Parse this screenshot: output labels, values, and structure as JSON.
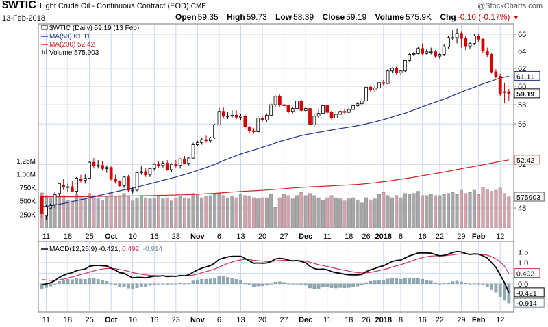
{
  "header": {
    "symbol": "$WTIC",
    "description": "Light Crude Oil - Continuous Contract (EOD)",
    "exchange": "CME",
    "logo": "@StockCharts.com",
    "date": "13-Feb-2018",
    "open_label": "Open",
    "open": "59.35",
    "high_label": "High",
    "high": "59.73",
    "low_label": "Low",
    "low": "58.39",
    "close_label": "Close",
    "close": "59.19",
    "volume_label": "Volume",
    "volume": "575.9K",
    "chg_label": "Chg",
    "chg": "-0.10 (-0.17%)"
  },
  "legend": {
    "price": "$WTIC (Daily) 59.19 (13 Feb)",
    "ma50": "MA(50) 61.11",
    "ma200": "MA(200) 52.42",
    "volume": "Volume 575,903"
  },
  "macd_label": {
    "name": "MACD(12,26,9)",
    "macd": "-0.421,",
    "signal": "0.492,",
    "hist": "-0.914"
  },
  "colors": {
    "up": "#ffffff",
    "down": "#dd0000",
    "ma50": "#1f2f8f",
    "ma200": "#cc2222",
    "grid": "#c9d7ee",
    "vol_up": "#a8a8a8",
    "vol_down": "#d6a2ad",
    "macd": "#000000",
    "signal": "#cc3355",
    "hist": "#8fa7b3"
  },
  "chart_data": [
    {
      "type": "candlestick",
      "title": "$WTIC Light Crude Oil - Continuous Contract (EOD)",
      "x": [
        "2017-09-08",
        "2017-09-11",
        "2017-09-12",
        "2017-09-13",
        "2017-09-14",
        "2017-09-15",
        "2017-09-18",
        "2017-09-19",
        "2017-09-20",
        "2017-09-21",
        "2017-09-22",
        "2017-09-25",
        "2017-09-26",
        "2017-09-27",
        "2017-09-28",
        "2017-09-29",
        "2017-10-02",
        "2017-10-03",
        "2017-10-04",
        "2017-10-05",
        "2017-10-06",
        "2017-10-09",
        "2017-10-10",
        "2017-10-11",
        "2017-10-12",
        "2017-10-13",
        "2017-10-16",
        "2017-10-17",
        "2017-10-18",
        "2017-10-19",
        "2017-10-20",
        "2017-10-23",
        "2017-10-24",
        "2017-10-25",
        "2017-10-26",
        "2017-10-27",
        "2017-10-30",
        "2017-10-31",
        "2017-11-01",
        "2017-11-02",
        "2017-11-03",
        "2017-11-06",
        "2017-11-07",
        "2017-11-08",
        "2017-11-09",
        "2017-11-10",
        "2017-11-13",
        "2017-11-14",
        "2017-11-15",
        "2017-11-16",
        "2017-11-17",
        "2017-11-20",
        "2017-11-21",
        "2017-11-22",
        "2017-11-24",
        "2017-11-27",
        "2017-11-28",
        "2017-11-29",
        "2017-11-30",
        "2017-12-01",
        "2017-12-04",
        "2017-12-05",
        "2017-12-06",
        "2017-12-07",
        "2017-12-08",
        "2017-12-11",
        "2017-12-12",
        "2017-12-13",
        "2017-12-14",
        "2017-12-15",
        "2017-12-18",
        "2017-12-19",
        "2017-12-20",
        "2017-12-21",
        "2017-12-22",
        "2017-12-26",
        "2017-12-27",
        "2017-12-28",
        "2017-12-29",
        "2018-01-02",
        "2018-01-03",
        "2018-01-04",
        "2018-01-05",
        "2018-01-08",
        "2018-01-09",
        "2018-01-10",
        "2018-01-11",
        "2018-01-12",
        "2018-01-16",
        "2018-01-17",
        "2018-01-18",
        "2018-01-19",
        "2018-01-22",
        "2018-01-23",
        "2018-01-24",
        "2018-01-25",
        "2018-01-26",
        "2018-01-29",
        "2018-01-30",
        "2018-01-31",
        "2018-02-01",
        "2018-02-02",
        "2018-02-05",
        "2018-02-06",
        "2018-02-07",
        "2018-02-08",
        "2018-02-09",
        "2018-02-12",
        "2018-02-13"
      ],
      "open": [
        49.0,
        47.3,
        48.0,
        48.3,
        49.3,
        50.0,
        49.9,
        49.9,
        49.5,
        50.6,
        50.5,
        50.7,
        52.2,
        51.9,
        51.9,
        51.6,
        51.7,
        50.6,
        50.4,
        50.0,
        50.8,
        49.6,
        49.6,
        51.2,
        51.3,
        51.0,
        51.6,
        52.0,
        51.9,
        52.1,
        51.5,
        52.0,
        51.9,
        52.5,
        52.1,
        52.6,
        53.9,
        54.1,
        54.4,
        54.3,
        54.6,
        55.9,
        57.3,
        56.8,
        56.8,
        56.9,
        56.7,
        56.8,
        55.7,
        55.3,
        55.2,
        56.6,
        56.4,
        56.9,
        58.0,
        58.9,
        58.0,
        57.9,
        57.3,
        57.6,
        58.4,
        57.4,
        57.6,
        55.9,
        56.8,
        57.1,
        57.9,
        57.2,
        56.6,
        57.0,
        57.3,
        57.2,
        57.5,
        57.9,
        58.1,
        58.4,
        59.9,
        59.6,
        59.8,
        60.4,
        60.3,
        61.7,
        62.0,
        61.5,
        61.7,
        62.9,
        63.6,
        63.7,
        64.3,
        63.7,
        63.9,
        63.9,
        63.4,
        63.6,
        64.5,
        65.6,
        65.6,
        66.1,
        65.5,
        64.6,
        64.9,
        65.8,
        65.4,
        64.0,
        63.6,
        61.6,
        61.1,
        59.4,
        59.4
      ],
      "high": [
        49.3,
        48.3,
        48.4,
        49.4,
        50.3,
        50.6,
        50.2,
        50.4,
        50.8,
        51.0,
        51.1,
        52.3,
        52.6,
        52.4,
        52.3,
        51.9,
        51.8,
        51.0,
        50.5,
        50.9,
        51.0,
        49.9,
        51.3,
        51.8,
        51.6,
        51.7,
        52.1,
        52.3,
        52.3,
        52.4,
        52.1,
        52.4,
        52.6,
        52.8,
        52.7,
        54.1,
        54.3,
        54.6,
        54.8,
        54.7,
        56.0,
        57.7,
        57.7,
        57.2,
        57.4,
        57.4,
        57.0,
        57.0,
        55.8,
        55.6,
        56.8,
        56.9,
        57.1,
        58.2,
        59.0,
        59.1,
        58.2,
        58.0,
        57.8,
        58.5,
        58.6,
        57.8,
        57.9,
        57.0,
        57.5,
        58.1,
        58.0,
        57.4,
        57.4,
        57.5,
        57.6,
        57.7,
        58.2,
        58.3,
        58.6,
        60.0,
        60.1,
        60.0,
        60.6,
        60.7,
        61.9,
        62.1,
        62.2,
        61.8,
        63.0,
        63.8,
        63.9,
        64.5,
        64.9,
        64.3,
        64.4,
        64.1,
        63.8,
        64.8,
        65.8,
        66.5,
        66.7,
        66.3,
        65.8,
        65.1,
        66.0,
        66.0,
        65.6,
        64.4,
        63.8,
        61.9,
        61.4,
        60.4,
        59.7
      ],
      "low": [
        47.1,
        47.0,
        47.9,
        48.0,
        49.1,
        49.6,
        49.4,
        49.6,
        49.3,
        50.3,
        50.2,
        50.6,
        51.6,
        51.6,
        51.4,
        51.2,
        50.5,
        50.2,
        49.9,
        49.8,
        49.4,
        49.3,
        49.5,
        51.0,
        50.8,
        50.8,
        51.4,
        51.7,
        51.7,
        51.4,
        51.3,
        51.7,
        51.6,
        52.0,
        51.9,
        52.5,
        53.8,
        53.9,
        54.1,
        54.1,
        54.5,
        55.8,
        56.6,
        56.5,
        56.6,
        56.5,
        56.4,
        55.5,
        55.1,
        55.0,
        55.1,
        56.2,
        56.2,
        56.8,
        57.8,
        57.8,
        57.6,
        57.0,
        57.1,
        57.4,
        57.2,
        57.3,
        55.8,
        55.7,
        56.6,
        57.0,
        57.0,
        56.4,
        56.5,
        56.9,
        57.0,
        57.1,
        57.4,
        57.8,
        57.9,
        58.3,
        59.4,
        59.4,
        59.7,
        60.1,
        60.2,
        61.5,
        61.3,
        61.2,
        61.6,
        62.8,
        63.4,
        63.6,
        63.5,
        63.5,
        63.6,
        63.2,
        63.1,
        63.4,
        64.3,
        65.3,
        64.9,
        64.4,
        64.1,
        64.3,
        64.7,
        65.0,
        63.8,
        63.3,
        61.4,
        60.9,
        58.9,
        58.2,
        58.4
      ],
      "close": [
        47.5,
        48.1,
        48.2,
        49.2,
        50.2,
        49.9,
        49.9,
        49.5,
        50.7,
        50.5,
        50.7,
        52.2,
        51.9,
        51.9,
        51.6,
        51.7,
        50.6,
        50.4,
        50.0,
        50.8,
        49.6,
        49.6,
        51.2,
        51.3,
        51.0,
        51.6,
        52.0,
        51.9,
        52.1,
        51.5,
        52.0,
        51.9,
        52.5,
        52.1,
        52.6,
        53.9,
        54.1,
        54.4,
        54.3,
        54.6,
        55.9,
        57.3,
        56.8,
        56.8,
        56.9,
        56.7,
        56.8,
        55.7,
        55.3,
        55.2,
        56.6,
        56.4,
        56.9,
        58.0,
        58.9,
        58.0,
        57.9,
        57.3,
        57.6,
        58.4,
        57.4,
        57.6,
        55.9,
        56.8,
        57.1,
        57.9,
        57.2,
        56.6,
        57.0,
        57.3,
        57.2,
        57.5,
        57.9,
        58.1,
        58.4,
        59.9,
        59.6,
        59.8,
        60.4,
        60.3,
        61.7,
        62.0,
        61.5,
        61.7,
        62.9,
        63.6,
        63.7,
        64.3,
        63.7,
        63.9,
        63.9,
        63.4,
        63.6,
        64.5,
        65.6,
        65.6,
        66.1,
        65.5,
        64.6,
        64.9,
        65.8,
        65.4,
        64.0,
        63.6,
        61.6,
        61.1,
        59.2,
        59.3,
        59.19
      ],
      "volume": [
        650,
        600,
        560,
        520,
        590,
        600,
        520,
        500,
        620,
        560,
        540,
        640,
        600,
        550,
        520,
        580,
        660,
        580,
        600,
        640,
        600,
        500,
        560,
        600,
        560,
        540,
        560,
        600,
        540,
        560,
        500,
        560,
        580,
        560,
        540,
        640,
        620,
        560,
        580,
        600,
        620,
        640,
        600,
        560,
        580,
        560,
        620,
        600,
        580,
        560,
        540,
        560,
        560,
        620,
        380,
        560,
        620,
        600,
        540,
        600,
        660,
        600,
        640,
        600,
        560,
        520,
        560,
        600,
        560,
        540,
        500,
        540,
        560,
        520,
        460,
        560,
        520,
        540,
        620,
        660,
        600,
        560,
        600,
        560,
        640,
        620,
        640,
        680,
        600,
        600,
        620,
        600,
        600,
        620,
        640,
        660,
        620,
        700,
        640,
        660,
        700,
        620,
        760,
        720,
        680,
        700,
        740,
        640,
        576
      ],
      "ma50": [
        48.1,
        48.15,
        48.2,
        48.25,
        48.32,
        48.4,
        48.48,
        48.56,
        48.65,
        48.73,
        48.82,
        48.9,
        49.0,
        49.1,
        49.18,
        49.27,
        49.36,
        49.45,
        49.53,
        49.62,
        49.7,
        49.78,
        49.88,
        49.98,
        50.08,
        50.18,
        50.29,
        50.39,
        50.5,
        50.6,
        50.7,
        50.8,
        50.92,
        51.03,
        51.15,
        51.28,
        51.42,
        51.56,
        51.7,
        51.85,
        52.0,
        52.18,
        52.36,
        52.52,
        52.68,
        52.84,
        53.0,
        53.13,
        53.26,
        53.38,
        53.52,
        53.65,
        53.78,
        53.92,
        54.08,
        54.22,
        54.34,
        54.46,
        54.58,
        54.7,
        54.81,
        54.9,
        54.98,
        55.06,
        55.14,
        55.22,
        55.3,
        55.38,
        55.46,
        55.53,
        55.6,
        55.67,
        55.74,
        55.82,
        55.9,
        56.0,
        56.1,
        56.2,
        56.32,
        56.44,
        56.57,
        56.71,
        56.85,
        56.98,
        57.12,
        57.28,
        57.44,
        57.6,
        57.78,
        57.95,
        58.12,
        58.28,
        58.44,
        58.6,
        58.78,
        58.97,
        59.16,
        59.36,
        59.54,
        59.72,
        59.9,
        60.08,
        60.26,
        60.42,
        60.58,
        60.75,
        60.9,
        61.02,
        61.11
      ],
      "ma200": [
        49.0,
        49.0,
        49.0,
        49.0,
        49.0,
        49.0,
        49.0,
        49.0,
        49.0,
        49.0,
        49.01,
        49.02,
        49.03,
        49.03,
        49.04,
        49.05,
        49.05,
        49.06,
        49.06,
        49.07,
        49.07,
        49.08,
        49.08,
        49.09,
        49.09,
        49.1,
        49.11,
        49.12,
        49.13,
        49.14,
        49.15,
        49.16,
        49.17,
        49.18,
        49.19,
        49.21,
        49.23,
        49.25,
        49.27,
        49.29,
        49.31,
        49.34,
        49.37,
        49.4,
        49.43,
        49.45,
        49.48,
        49.5,
        49.52,
        49.54,
        49.56,
        49.58,
        49.61,
        49.64,
        49.67,
        49.7,
        49.73,
        49.76,
        49.79,
        49.82,
        49.85,
        49.87,
        49.89,
        49.91,
        49.93,
        49.95,
        49.97,
        49.99,
        50.01,
        50.03,
        50.05,
        50.07,
        50.09,
        50.12,
        50.15,
        50.19,
        50.23,
        50.27,
        50.32,
        50.37,
        50.42,
        50.48,
        50.54,
        50.6,
        50.66,
        50.72,
        50.78,
        50.85,
        50.92,
        50.99,
        51.06,
        51.13,
        51.2,
        51.27,
        51.34,
        51.42,
        51.5,
        51.58,
        51.66,
        51.73,
        51.8,
        51.88,
        51.96,
        52.04,
        52.12,
        52.2,
        52.28,
        52.35,
        52.42
      ],
      "ylim": [
        46,
        67
      ],
      "y_ticks": [
        48,
        52,
        56,
        58,
        60,
        62,
        64,
        66
      ],
      "volume_ticks": [
        "250K",
        "500K",
        "750K",
        "1.00M",
        "1.25M"
      ],
      "x_tick_labels": [
        "11",
        "18",
        "25",
        "Oct",
        "10",
        "16",
        "23",
        "Nov",
        "6",
        "13",
        "20",
        "27",
        "Dec",
        "11",
        "18",
        "26",
        "2018",
        "8",
        "16",
        "22",
        "29",
        "Feb",
        "12"
      ],
      "last_labels": [
        "61.11",
        "59.19",
        "52.42",
        "575903"
      ],
      "grid": true
    },
    {
      "type": "line",
      "title": "MACD(12,26,9)",
      "macd": [
        -0.05,
        0.0,
        0.05,
        0.15,
        0.3,
        0.4,
        0.48,
        0.52,
        0.62,
        0.66,
        0.7,
        0.82,
        0.86,
        0.87,
        0.85,
        0.84,
        0.74,
        0.64,
        0.52,
        0.5,
        0.38,
        0.28,
        0.3,
        0.3,
        0.28,
        0.32,
        0.36,
        0.36,
        0.38,
        0.34,
        0.36,
        0.35,
        0.39,
        0.38,
        0.42,
        0.55,
        0.65,
        0.74,
        0.8,
        0.86,
        0.98,
        1.15,
        1.22,
        1.27,
        1.3,
        1.3,
        1.3,
        1.2,
        1.08,
        0.97,
        0.98,
        0.97,
        0.98,
        1.05,
        1.17,
        1.2,
        1.18,
        1.12,
        1.08,
        1.1,
        1.05,
        1.0,
        0.82,
        0.72,
        0.68,
        0.7,
        0.66,
        0.58,
        0.52,
        0.5,
        0.45,
        0.42,
        0.42,
        0.42,
        0.44,
        0.58,
        0.66,
        0.72,
        0.8,
        0.85,
        0.95,
        1.05,
        1.1,
        1.12,
        1.22,
        1.32,
        1.38,
        1.45,
        1.45,
        1.45,
        1.44,
        1.38,
        1.32,
        1.34,
        1.4,
        1.47,
        1.52,
        1.5,
        1.43,
        1.38,
        1.41,
        1.4,
        1.32,
        1.22,
        1.0,
        0.78,
        0.42,
        0.05,
        -0.42
      ],
      "signal": [
        0.2,
        0.18,
        0.16,
        0.16,
        0.18,
        0.22,
        0.27,
        0.32,
        0.38,
        0.44,
        0.49,
        0.55,
        0.61,
        0.66,
        0.7,
        0.72,
        0.73,
        0.71,
        0.67,
        0.64,
        0.59,
        0.53,
        0.49,
        0.45,
        0.42,
        0.4,
        0.39,
        0.38,
        0.38,
        0.37,
        0.37,
        0.36,
        0.37,
        0.37,
        0.38,
        0.41,
        0.46,
        0.52,
        0.58,
        0.63,
        0.7,
        0.79,
        0.88,
        0.96,
        1.03,
        1.09,
        1.13,
        1.15,
        1.14,
        1.11,
        1.09,
        1.07,
        1.05,
        1.05,
        1.08,
        1.1,
        1.11,
        1.11,
        1.1,
        1.1,
        1.09,
        1.07,
        1.02,
        0.96,
        0.9,
        0.86,
        0.82,
        0.77,
        0.72,
        0.68,
        0.64,
        0.6,
        0.56,
        0.53,
        0.51,
        0.52,
        0.54,
        0.58,
        0.62,
        0.67,
        0.72,
        0.79,
        0.85,
        0.9,
        0.97,
        1.04,
        1.11,
        1.18,
        1.23,
        1.28,
        1.31,
        1.32,
        1.32,
        1.32,
        1.34,
        1.36,
        1.39,
        1.41,
        1.41,
        1.4,
        1.4,
        1.4,
        1.38,
        1.35,
        1.28,
        1.18,
        1.03,
        0.83,
        0.492
      ],
      "histogram_last": -0.914,
      "ylim": [
        -1.2,
        1.9
      ],
      "y_ticks": [
        "1.5",
        "1.0",
        "0.5",
        "0.0"
      ],
      "last_labels": [
        "0.492",
        "-0.421",
        "-0.914"
      ]
    }
  ]
}
